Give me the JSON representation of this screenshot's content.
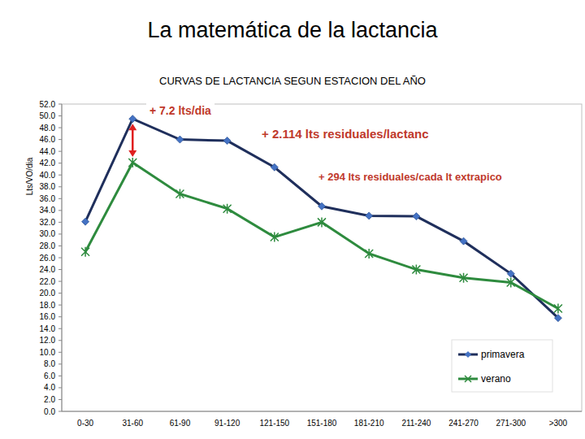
{
  "chart_data": {
    "type": "line",
    "title": "La matemática de la lactancia",
    "subtitle": "CURVAS DE LACTANCIA SEGUN ESTACION DEL AÑO",
    "y_label": "Lts/VO/dia",
    "categories": [
      "0-30",
      "31-60",
      "61-90",
      "91-120",
      "121-150",
      "151-180",
      "181-210",
      "211-240",
      "241-270",
      "271-300",
      ">300"
    ],
    "series": [
      {
        "name": "primavera",
        "color": "#1f2f5c",
        "marker": "diamond",
        "values": [
          32.1,
          49.5,
          46.0,
          45.8,
          41.3,
          34.7,
          33.1,
          33.0,
          28.8,
          23.3,
          15.8
        ]
      },
      {
        "name": "verano",
        "color": "#2e8b3e",
        "marker": "star",
        "values": [
          27.0,
          42.1,
          36.8,
          34.3,
          29.5,
          32.0,
          26.7,
          24.0,
          22.6,
          21.8,
          17.4
        ]
      }
    ],
    "annotations": [
      "+ 7.2 lts/dia",
      "+ 2.114 lts residuales/lactanc",
      "+ 294 lts residuales/cada lt extrapico"
    ],
    "ylim": [
      0,
      52
    ],
    "yticks": [
      {
        "value": 0,
        "label": "0.0"
      },
      {
        "value": 2,
        "label": "2.0"
      },
      {
        "value": 4,
        "label": "4.0"
      },
      {
        "value": 6,
        "label": "6.0"
      },
      {
        "value": 8,
        "label": "8.0"
      },
      {
        "value": 10,
        "label": "10.0"
      },
      {
        "value": 12,
        "label": "12.0"
      },
      {
        "value": 14,
        "label": "14.0"
      },
      {
        "value": 16,
        "label": "16.0"
      },
      {
        "value": 18,
        "label": "18.0"
      },
      {
        "value": 20,
        "label": "20.0"
      },
      {
        "value": 22,
        "label": "22.0"
      },
      {
        "value": 24,
        "label": "24.0"
      },
      {
        "value": 26,
        "label": "26.0"
      },
      {
        "value": 28,
        "label": "28.0"
      },
      {
        "value": 30,
        "label": "30.0"
      },
      {
        "value": 32,
        "label": "32.0"
      },
      {
        "value": 34,
        "label": "34.0"
      },
      {
        "value": 36,
        "label": "36.0"
      },
      {
        "value": 38,
        "label": "38.0"
      },
      {
        "value": 40,
        "label": "40.0"
      },
      {
        "value": 42,
        "label": "42.0"
      },
      {
        "value": 44,
        "label": "44.0"
      },
      {
        "value": 46,
        "label": "46.0"
      },
      {
        "value": 48,
        "label": "48.0"
      },
      {
        "value": 50,
        "label": "50.0"
      },
      {
        "value": 52,
        "label": "52.0"
      }
    ],
    "grid": false,
    "legend": "lower right"
  }
}
